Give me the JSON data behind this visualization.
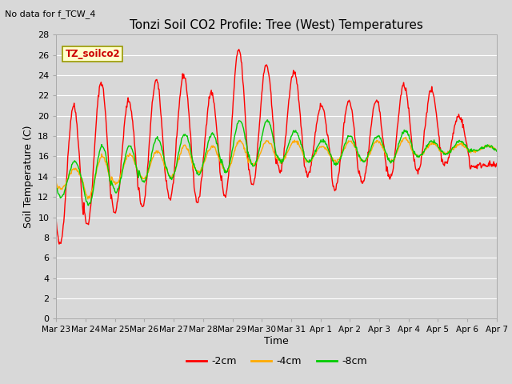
{
  "title": "Tonzi Soil CO2 Profile: Tree (West) Temperatures",
  "top_left_text": "No data for f_TCW_4",
  "ylabel": "Soil Temperature (C)",
  "xlabel": "Time",
  "ylim": [
    0,
    28
  ],
  "background_color": "#d8d8d8",
  "plot_bg_color": "#d8d8d8",
  "legend_label": "TZ_soilco2",
  "series": {
    "-2cm": {
      "color": "#ff0000",
      "lw": 1.0
    },
    "-4cm": {
      "color": "#ffaa00",
      "lw": 1.0
    },
    "-8cm": {
      "color": "#00cc00",
      "lw": 1.0
    }
  },
  "xtick_labels": [
    "Mar 23",
    "Mar 24",
    "Mar 25",
    "Mar 26",
    "Mar 27",
    "Mar 28",
    "Mar 29",
    "Mar 30",
    "Mar 31",
    "Apr 1",
    "Apr 2",
    "Apr 3",
    "Apr 4",
    "Apr 5",
    "Apr 6",
    "Apr 7"
  ],
  "ytick_labels": [
    0,
    2,
    4,
    6,
    8,
    10,
    12,
    14,
    16,
    18,
    20,
    22,
    24,
    26,
    28
  ],
  "peaks_red": [
    21.0,
    23.3,
    21.5,
    23.5,
    24.0,
    22.3,
    26.5,
    25.0,
    24.3,
    21.0,
    21.5,
    21.5,
    23.0,
    22.5,
    20.0,
    15.2
  ],
  "troughs_red": [
    7.3,
    9.2,
    10.5,
    11.0,
    11.8,
    11.5,
    12.0,
    13.2,
    14.5,
    14.2,
    12.8,
    13.5,
    13.8,
    14.5,
    15.2,
    15.0
  ],
  "peaks_8cm": [
    15.5,
    17.0,
    17.0,
    17.8,
    18.2,
    18.2,
    19.5,
    19.5,
    18.5,
    17.5,
    18.0,
    18.0,
    18.5,
    17.5,
    17.5,
    17.0
  ],
  "troughs_8cm": [
    12.0,
    11.2,
    12.5,
    13.5,
    13.8,
    14.2,
    14.5,
    15.0,
    15.5,
    15.5,
    15.2,
    15.5,
    15.5,
    16.0,
    16.2,
    16.5
  ],
  "peaks_4cm": [
    14.8,
    16.0,
    16.2,
    16.5,
    17.0,
    17.0,
    17.5,
    17.5,
    17.5,
    17.0,
    17.5,
    17.5,
    17.8,
    17.3,
    17.2,
    17.0
  ],
  "troughs_4cm": [
    12.8,
    12.0,
    13.3,
    13.8,
    14.0,
    14.5,
    14.5,
    15.2,
    15.5,
    15.5,
    15.5,
    15.5,
    15.5,
    16.0,
    16.3,
    16.5
  ]
}
